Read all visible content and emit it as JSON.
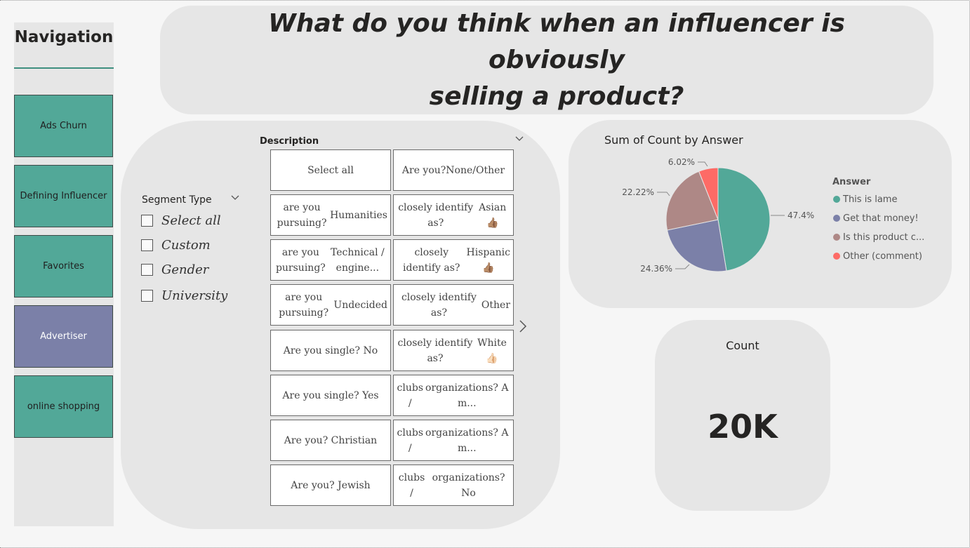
{
  "navigation": {
    "title": "Navigation",
    "buttons": [
      {
        "label": "Ads Churn"
      },
      {
        "label": "Defining Influencer"
      },
      {
        "label": "Favorites"
      },
      {
        "label": "Advertiser",
        "active": true
      },
      {
        "label": "online shopping"
      }
    ]
  },
  "title": {
    "line1": "What do you think when an influencer is obviously",
    "line2": "selling a product?"
  },
  "segment_slicer": {
    "header": "Segment Type",
    "options": [
      "Select all",
      "Custom",
      "Gender",
      "University"
    ]
  },
  "description_slicer": {
    "header": "Description",
    "tiles": [
      [
        "Select all"
      ],
      [
        "Are you?",
        "None/Other"
      ],
      [
        "are you pursuing?",
        "Humanities"
      ],
      [
        "closely identify as?",
        "Asian 👍🏽"
      ],
      [
        "are you pursuing?",
        "Technical / engine..."
      ],
      [
        "closely identify as?",
        "Hispanic 👍🏽"
      ],
      [
        "are you pursuing?",
        "Undecided"
      ],
      [
        "closely identify as?",
        "Other"
      ],
      [
        "Are you single? No"
      ],
      [
        "closely identify as?",
        "White 👍🏻"
      ],
      [
        "Are you single? Yes"
      ],
      [
        "clubs /",
        "organizations? A m..."
      ],
      [
        "Are you? Christian"
      ],
      [
        "clubs /",
        "organizations? A m..."
      ],
      [
        "Are you? Jewish"
      ],
      [
        "clubs /",
        "organizations? No"
      ]
    ]
  },
  "pie_card": {
    "title": "Sum of Count by Answer",
    "legend_title": "Answer"
  },
  "chart_data": {
    "type": "pie",
    "title": "Sum of Count by Answer",
    "legend_title": "Answer",
    "legend_position": "right",
    "slices": [
      {
        "name": "This is lame",
        "display_name": "This is lame",
        "percent": 47.4,
        "label": "47.4%",
        "color": "#52a898"
      },
      {
        "name": "Get that money!",
        "display_name": "Get that money!",
        "percent": 24.36,
        "label": "24.36%",
        "color": "#7b80a8"
      },
      {
        "name": "Is this product c...",
        "display_name": "Is this product c...",
        "percent": 22.22,
        "label": "22.22%",
        "color": "#ae8886"
      },
      {
        "name": "Other (comment)",
        "display_name": "Other (comment)",
        "percent": 6.02,
        "label": "6.02%",
        "color": "#fd6b66"
      }
    ]
  },
  "count_card": {
    "label": "Count",
    "value": "20K"
  }
}
